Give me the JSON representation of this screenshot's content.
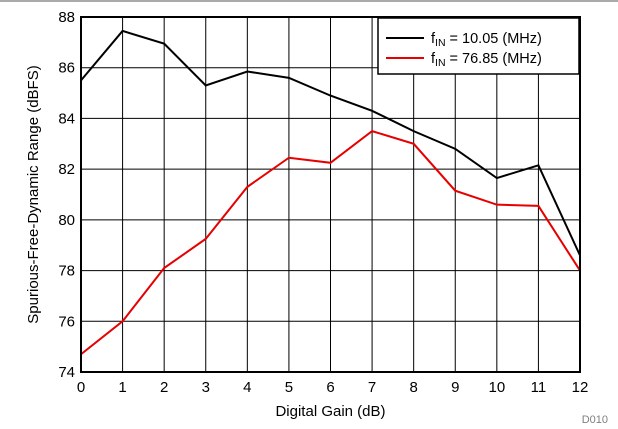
{
  "chart_data": {
    "type": "line",
    "xlabel": "Digital Gain (dB)",
    "ylabel": "Spurious-Free-Dynamic Range (dBFS)",
    "xlim": [
      0,
      12
    ],
    "ylim": [
      74,
      88
    ],
    "x_ticks": [
      0,
      1,
      2,
      3,
      4,
      5,
      6,
      7,
      8,
      9,
      10,
      11,
      12
    ],
    "y_ticks": [
      74,
      76,
      78,
      80,
      82,
      84,
      86,
      88
    ],
    "grid": true,
    "legend_position": "top-right",
    "footnote": "D010",
    "x": [
      0,
      1,
      2,
      3,
      4,
      5,
      6,
      7,
      8,
      9,
      10,
      11,
      12
    ],
    "series": [
      {
        "label_prefix": "f",
        "label_subscript": "IN",
        "label_suffix": " = 10.05 (MHz)",
        "color": "#000000",
        "values": [
          85.5,
          87.45,
          86.95,
          85.3,
          85.85,
          85.6,
          84.9,
          84.3,
          83.5,
          82.8,
          81.65,
          82.15,
          78.6
        ]
      },
      {
        "label_prefix": "f",
        "label_subscript": "IN",
        "label_suffix": " = 76.85 (MHz)",
        "color": "#e60000",
        "values": [
          74.7,
          76.0,
          78.1,
          79.25,
          81.3,
          82.45,
          82.25,
          83.5,
          83.0,
          81.15,
          80.6,
          80.55,
          78.0
        ]
      }
    ]
  }
}
